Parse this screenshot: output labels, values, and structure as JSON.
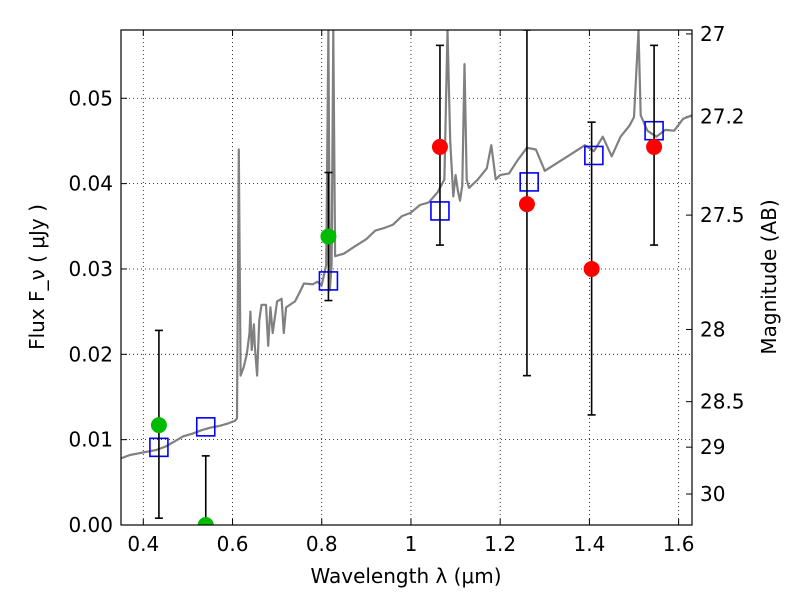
{
  "chart_data": {
    "type": "scatter",
    "xlabel": "Wavelength  λ (μm)",
    "ylabel": "Flux  F_ν  ( μJy )",
    "ylabel_right": "Magnitude (AB)",
    "xlim": [
      0.35,
      1.63
    ],
    "ylim": [
      0.0,
      0.058
    ],
    "grid": true,
    "x_ticks": [
      0.4,
      0.6,
      0.8,
      1.0,
      1.2,
      1.4,
      1.6
    ],
    "x_tick_labels": [
      "0.4",
      "0.6",
      "0.8",
      "1",
      "1.2",
      "1.4",
      "1.6"
    ],
    "y_ticks": [
      0.0,
      0.01,
      0.02,
      0.03,
      0.04,
      0.05
    ],
    "y_tick_labels": [
      "0.00",
      "0.01",
      "0.02",
      "0.03",
      "0.04",
      "0.05"
    ],
    "right_ticks": [
      {
        "label": "27",
        "flux": 0.05754
      },
      {
        "label": "27.2",
        "flux": 0.04786
      },
      {
        "label": "27.5",
        "flux": 0.03631
      },
      {
        "label": "28",
        "flux": 0.02291
      },
      {
        "label": "28.5",
        "flux": 0.01445
      },
      {
        "label": "29",
        "flux": 0.00912
      },
      {
        "label": "30",
        "flux": 0.00363
      }
    ],
    "series": [
      {
        "kind": "spectrum",
        "color": "#808080",
        "points": [
          [
            0.35,
            0.0078
          ],
          [
            0.37,
            0.0082
          ],
          [
            0.39,
            0.0084
          ],
          [
            0.41,
            0.0086
          ],
          [
            0.43,
            0.0088
          ],
          [
            0.45,
            0.0092
          ],
          [
            0.47,
            0.0098
          ],
          [
            0.49,
            0.0104
          ],
          [
            0.51,
            0.0107
          ],
          [
            0.53,
            0.0111
          ],
          [
            0.55,
            0.0114
          ],
          [
            0.57,
            0.0116
          ],
          [
            0.59,
            0.0119
          ],
          [
            0.605,
            0.0122
          ],
          [
            0.61,
            0.0125
          ],
          [
            0.614,
            0.044
          ],
          [
            0.618,
            0.0175
          ],
          [
            0.625,
            0.0185
          ],
          [
            0.632,
            0.02
          ],
          [
            0.638,
            0.0225
          ],
          [
            0.64,
            0.025
          ],
          [
            0.643,
            0.0205
          ],
          [
            0.648,
            0.0235
          ],
          [
            0.65,
            0.021
          ],
          [
            0.655,
            0.0175
          ],
          [
            0.66,
            0.024
          ],
          [
            0.665,
            0.0258
          ],
          [
            0.675,
            0.0258
          ],
          [
            0.68,
            0.021
          ],
          [
            0.685,
            0.0255
          ],
          [
            0.69,
            0.0225
          ],
          [
            0.7,
            0.0262
          ],
          [
            0.71,
            0.0265
          ],
          [
            0.715,
            0.0225
          ],
          [
            0.72,
            0.0255
          ],
          [
            0.74,
            0.0262
          ],
          [
            0.75,
            0.0272
          ],
          [
            0.76,
            0.0283
          ],
          [
            0.78,
            0.0282
          ],
          [
            0.79,
            0.0285
          ],
          [
            0.8,
            0.0281
          ],
          [
            0.81,
            0.0305
          ],
          [
            0.815,
            0.058
          ],
          [
            0.818,
            0.0275
          ],
          [
            0.822,
            0.0305
          ],
          [
            0.826,
            0.058
          ],
          [
            0.83,
            0.0315
          ],
          [
            0.85,
            0.0318
          ],
          [
            0.87,
            0.0325
          ],
          [
            0.9,
            0.0335
          ],
          [
            0.92,
            0.0345
          ],
          [
            0.94,
            0.0348
          ],
          [
            0.96,
            0.0352
          ],
          [
            0.98,
            0.0362
          ],
          [
            1.0,
            0.0366
          ],
          [
            1.02,
            0.0375
          ],
          [
            1.04,
            0.0378
          ],
          [
            1.06,
            0.039
          ],
          [
            1.075,
            0.0405
          ],
          [
            1.082,
            0.058
          ],
          [
            1.088,
            0.045
          ],
          [
            1.095,
            0.0385
          ],
          [
            1.1,
            0.041
          ],
          [
            1.105,
            0.0392
          ],
          [
            1.11,
            0.038
          ],
          [
            1.115,
            0.0398
          ],
          [
            1.12,
            0.054
          ],
          [
            1.125,
            0.0405
          ],
          [
            1.13,
            0.0395
          ],
          [
            1.15,
            0.0405
          ],
          [
            1.17,
            0.0418
          ],
          [
            1.18,
            0.0445
          ],
          [
            1.19,
            0.0405
          ],
          [
            1.2,
            0.041
          ],
          [
            1.22,
            0.0412
          ],
          [
            1.24,
            0.0428
          ],
          [
            1.26,
            0.0442
          ],
          [
            1.28,
            0.044
          ],
          [
            1.3,
            0.0415
          ],
          [
            1.33,
            0.0425
          ],
          [
            1.36,
            0.0435
          ],
          [
            1.39,
            0.0445
          ],
          [
            1.41,
            0.0438
          ],
          [
            1.43,
            0.0455
          ],
          [
            1.45,
            0.0432
          ],
          [
            1.47,
            0.0455
          ],
          [
            1.49,
            0.0468
          ],
          [
            1.5,
            0.0478
          ],
          [
            1.51,
            0.058
          ],
          [
            1.515,
            0.048
          ],
          [
            1.53,
            0.0462
          ],
          [
            1.55,
            0.0455
          ],
          [
            1.57,
            0.0463
          ],
          [
            1.59,
            0.0462
          ],
          [
            1.61,
            0.0476
          ],
          [
            1.63,
            0.048
          ]
        ]
      },
      {
        "kind": "model_photometry",
        "marker": "open-square",
        "color": "#0000ff",
        "points": [
          [
            0.435,
            0.0091
          ],
          [
            0.54,
            0.0115
          ],
          [
            0.815,
            0.0286
          ],
          [
            1.065,
            0.0368
          ],
          [
            1.265,
            0.0402
          ],
          [
            1.41,
            0.0433
          ],
          [
            1.545,
            0.0462
          ]
        ]
      },
      {
        "kind": "detections",
        "marker": "filled-circle",
        "color": "#ff0000",
        "points": [
          [
            1.065,
            0.0443
          ],
          [
            1.26,
            0.0376
          ],
          [
            1.405,
            0.03
          ],
          [
            1.545,
            0.0443
          ]
        ]
      },
      {
        "kind": "detections",
        "marker": "filled-circle",
        "color": "#00bb00",
        "points": [
          [
            0.435,
            0.0117
          ],
          [
            0.54,
            0.0
          ],
          [
            0.815,
            0.0338
          ]
        ]
      },
      {
        "kind": "error_bars",
        "color": "#000000",
        "bars": [
          {
            "x": 0.435,
            "low": 0.0008,
            "high": 0.0228
          },
          {
            "x": 0.54,
            "low": 0.0,
            "high": 0.0081
          },
          {
            "x": 0.815,
            "low": 0.0263,
            "high": 0.0413
          },
          {
            "x": 1.065,
            "low": 0.0328,
            "high": 0.0562
          },
          {
            "x": 1.26,
            "low": 0.0175,
            "high": 0.058
          },
          {
            "x": 1.405,
            "low": 0.0129,
            "high": 0.0472
          },
          {
            "x": 1.545,
            "low": 0.0328,
            "high": 0.0562
          }
        ]
      }
    ]
  }
}
